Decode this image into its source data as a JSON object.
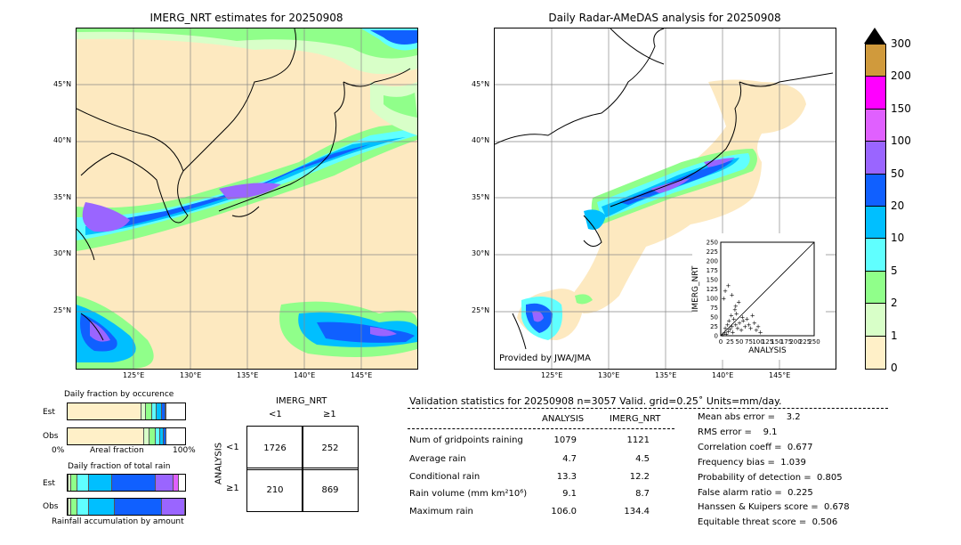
{
  "left_map": {
    "title": "IMERG_NRT estimates for 20250908",
    "lat_labels": [
      "45°N",
      "40°N",
      "35°N",
      "30°N",
      "25°N"
    ],
    "lon_labels": [
      "125°E",
      "130°E",
      "135°E",
      "140°E",
      "145°E"
    ]
  },
  "right_map": {
    "title": "Daily Radar-AMeDAS analysis for 20250908",
    "lat_labels": [
      "45°N",
      "40°N",
      "35°N",
      "30°N",
      "25°N"
    ],
    "lon_labels": [
      "125°E",
      "130°E",
      "135°E",
      "140°E",
      "145°E"
    ],
    "credit": "Provided by JWA/JMA"
  },
  "colorbar": {
    "labels": [
      "300",
      "200",
      "150",
      "100",
      "50",
      "20",
      "10",
      "5",
      "2",
      "1",
      "0"
    ],
    "colors": [
      "#d09a3c",
      "#ff00ff",
      "#e060ff",
      "#9a65ff",
      "#1060ff",
      "#00bfff",
      "#60ffff",
      "#90ff8a",
      "#d8ffc8",
      "#fff0c8"
    ]
  },
  "chart_data": [
    {
      "type": "scatter",
      "title": "",
      "xlabel": "ANALYSIS",
      "ylabel": "IMERG_NRT",
      "xlim": [
        0,
        250
      ],
      "ylim": [
        0,
        250
      ],
      "x_ticks": [
        "0",
        "25",
        "50",
        "75",
        "100",
        "125",
        "150",
        "175",
        "200",
        "225",
        "250"
      ],
      "y_ticks": [
        "0",
        "25",
        "50",
        "75",
        "100",
        "125",
        "150",
        "175",
        "200",
        "225",
        "250"
      ],
      "points_sample": [
        [
          5,
          3
        ],
        [
          10,
          8
        ],
        [
          12,
          20
        ],
        [
          15,
          5
        ],
        [
          18,
          30
        ],
        [
          20,
          12
        ],
        [
          22,
          40
        ],
        [
          25,
          18
        ],
        [
          28,
          55
        ],
        [
          30,
          25
        ],
        [
          32,
          10
        ],
        [
          35,
          45
        ],
        [
          38,
          70
        ],
        [
          40,
          30
        ],
        [
          42,
          60
        ],
        [
          45,
          20
        ],
        [
          48,
          90
        ],
        [
          50,
          35
        ],
        [
          55,
          15
        ],
        [
          58,
          50
        ],
        [
          60,
          40
        ],
        [
          65,
          25
        ],
        [
          70,
          45
        ],
        [
          75,
          30
        ],
        [
          80,
          20
        ],
        [
          85,
          55
        ],
        [
          90,
          35
        ],
        [
          95,
          15
        ],
        [
          100,
          25
        ],
        [
          106,
          10
        ],
        [
          8,
          100
        ],
        [
          12,
          120
        ],
        [
          20,
          134
        ],
        [
          30,
          110
        ],
        [
          40,
          80
        ]
      ]
    },
    {
      "type": "bar",
      "title": "Daily fraction by occurence",
      "orientation": "horizontal-stacked",
      "categories": [
        "Est",
        "Obs"
      ],
      "xlabel": "Areal fraction",
      "x_ticks": [
        "0%",
        "100%"
      ],
      "series": [
        {
          "name": "0-1",
          "color": "#fff0c8",
          "values": [
            0.63,
            0.65
          ]
        },
        {
          "name": "1-2",
          "color": "#d8ffc8",
          "values": [
            0.04,
            0.05
          ]
        },
        {
          "name": "2-5",
          "color": "#90ff8a",
          "values": [
            0.05,
            0.05
          ]
        },
        {
          "name": "5-10",
          "color": "#60ffff",
          "values": [
            0.04,
            0.04
          ]
        },
        {
          "name": "10-20",
          "color": "#00bfff",
          "values": [
            0.04,
            0.03
          ]
        },
        {
          "name": "20-50",
          "color": "#1060ff",
          "values": [
            0.03,
            0.02
          ]
        },
        {
          "name": "50-100",
          "color": "#9a65ff",
          "values": [
            0.01,
            0.0
          ]
        }
      ]
    },
    {
      "type": "bar",
      "title": "Daily fraction of total rain",
      "orientation": "horizontal-stacked",
      "categories": [
        "Est",
        "Obs"
      ],
      "xlabel": "Rainfall accumulation by amount",
      "series": [
        {
          "name": "0-1",
          "color": "#fff0c8",
          "values": [
            0.01,
            0.01
          ]
        },
        {
          "name": "1-2",
          "color": "#d8ffc8",
          "values": [
            0.02,
            0.02
          ]
        },
        {
          "name": "2-5",
          "color": "#90ff8a",
          "values": [
            0.05,
            0.05
          ]
        },
        {
          "name": "5-10",
          "color": "#60ffff",
          "values": [
            0.1,
            0.1
          ]
        },
        {
          "name": "10-20",
          "color": "#00bfff",
          "values": [
            0.2,
            0.22
          ]
        },
        {
          "name": "20-50",
          "color": "#1060ff",
          "values": [
            0.37,
            0.4
          ]
        },
        {
          "name": "50-100",
          "color": "#9a65ff",
          "values": [
            0.15,
            0.2
          ]
        },
        {
          "name": "100-150",
          "color": "#e060ff",
          "values": [
            0.05,
            0.0
          ]
        }
      ]
    },
    {
      "type": "table",
      "title": "IMERG_NRT",
      "row_header": "ANALYSIS",
      "col_labels": [
        "<1",
        "≥1"
      ],
      "row_labels": [
        "<1",
        "≥1"
      ],
      "cells": [
        [
          "1726",
          "252"
        ],
        [
          "210",
          "869"
        ]
      ]
    }
  ],
  "validation": {
    "header": "Validation statistics for 20250908  n=3057 Valid. grid=0.25˚ Units=mm/day.",
    "col_analysis": "ANALYSIS",
    "col_imerg": "IMERG_NRT",
    "rows": [
      {
        "label": "Num of gridpoints raining",
        "analysis": "1079",
        "imerg": "1121"
      },
      {
        "label": "Average rain",
        "analysis": "4.7",
        "imerg": "4.5"
      },
      {
        "label": "Conditional rain",
        "analysis": "13.3",
        "imerg": "12.2"
      },
      {
        "label": "Rain volume (mm km²10⁶)",
        "analysis": "9.1",
        "imerg": "8.7"
      },
      {
        "label": "Maximum rain",
        "analysis": "106.0",
        "imerg": "134.4"
      }
    ],
    "scores": [
      "Mean abs error =    3.2",
      "RMS error =    9.1",
      "Correlation coeff =  0.677",
      "Frequency bias =  1.039",
      "Probability of detection =  0.805",
      "False alarm ratio =  0.225",
      "Hanssen & Kuipers score =  0.678",
      "Equitable threat score =  0.506"
    ]
  }
}
